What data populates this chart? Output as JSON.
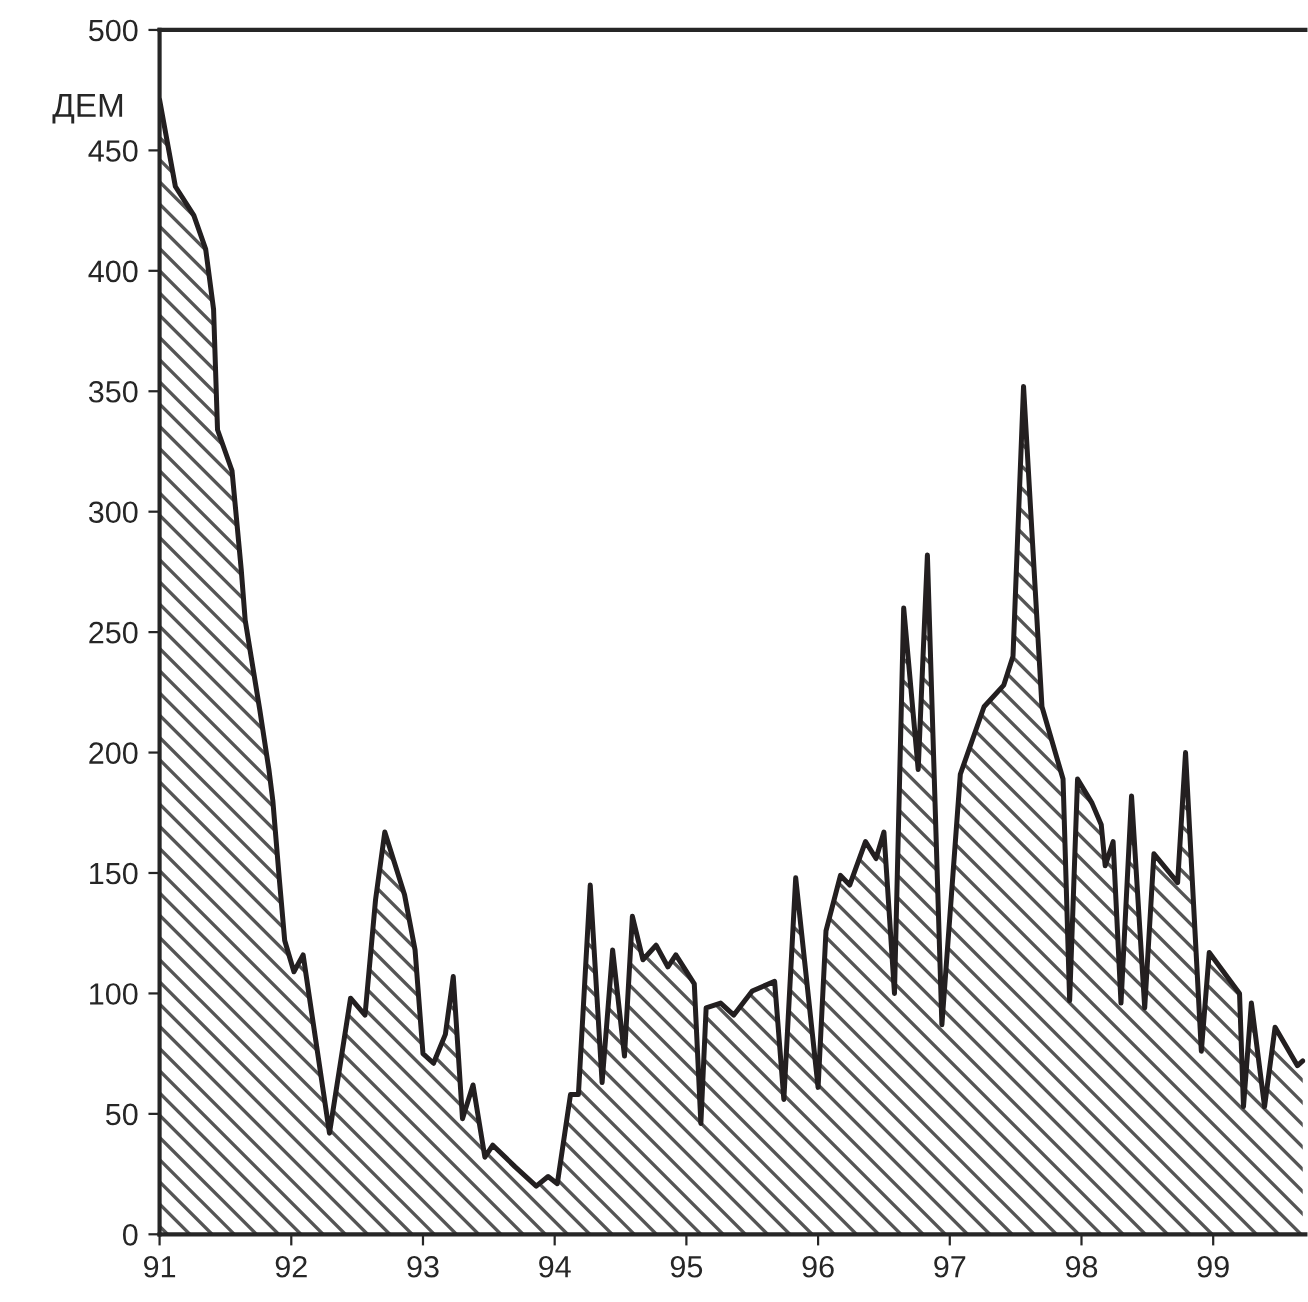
{
  "chart_data": {
    "type": "area",
    "ylabel": "ДЕМ",
    "x": [
      91.0,
      91.12,
      91.26,
      91.35,
      91.41,
      91.44,
      91.55,
      91.62,
      91.65,
      91.76,
      91.83,
      91.86,
      91.91,
      91.95,
      92.02,
      92.09,
      92.29,
      92.45,
      92.56,
      92.64,
      92.71,
      92.86,
      92.94,
      93.0,
      93.08,
      93.17,
      93.23,
      93.3,
      93.38,
      93.47,
      93.53,
      93.7,
      93.86,
      93.95,
      94.02,
      94.12,
      94.18,
      94.27,
      94.36,
      94.44,
      94.53,
      94.59,
      94.67,
      94.77,
      94.86,
      94.92,
      95.06,
      95.11,
      95.15,
      95.26,
      95.36,
      95.5,
      95.67,
      95.74,
      95.83,
      96.0,
      96.06,
      96.17,
      96.24,
      96.36,
      96.44,
      96.5,
      96.58,
      96.65,
      96.76,
      96.83,
      96.94,
      97.08,
      97.26,
      97.41,
      97.48,
      97.56,
      97.7,
      97.86,
      97.91,
      97.97,
      98.08,
      98.15,
      98.18,
      98.24,
      98.3,
      98.38,
      98.48,
      98.55,
      98.73,
      98.79,
      98.91,
      98.97,
      99.2,
      99.23,
      99.29,
      99.39,
      99.47,
      99.64,
      99.68
    ],
    "series": [
      {
        "color": "#231f20",
        "values": [
          471,
          435,
          423,
          409,
          384,
          334,
          317,
          276,
          255,
          218,
          193,
          180,
          147,
          122,
          109,
          116,
          42,
          98,
          91,
          139,
          167,
          141,
          118,
          75,
          71,
          83,
          107,
          48,
          62,
          32,
          37,
          28,
          20,
          24,
          21,
          58,
          58,
          145,
          63,
          118,
          74,
          132,
          114,
          120,
          111,
          116,
          104,
          46,
          94,
          96,
          91,
          101,
          105,
          56,
          148,
          61,
          126,
          149,
          145,
          163,
          156,
          167,
          100,
          260,
          193,
          282,
          87,
          191,
          219,
          228,
          240,
          352,
          219,
          189,
          97,
          189,
          179,
          170,
          153,
          163,
          96,
          182,
          94,
          158,
          146,
          200,
          76,
          117,
          100,
          53,
          96,
          53,
          86,
          70,
          72
        ]
      }
    ],
    "xlim": [
      91,
      99.7
    ],
    "xticks": [
      91,
      92,
      93,
      94,
      95,
      96,
      97,
      98,
      99
    ],
    "ylim": [
      0,
      500
    ],
    "yticks": [
      0,
      50,
      100,
      150,
      200,
      250,
      300,
      350,
      400,
      450,
      500
    ],
    "grid": false,
    "legend": false
  }
}
